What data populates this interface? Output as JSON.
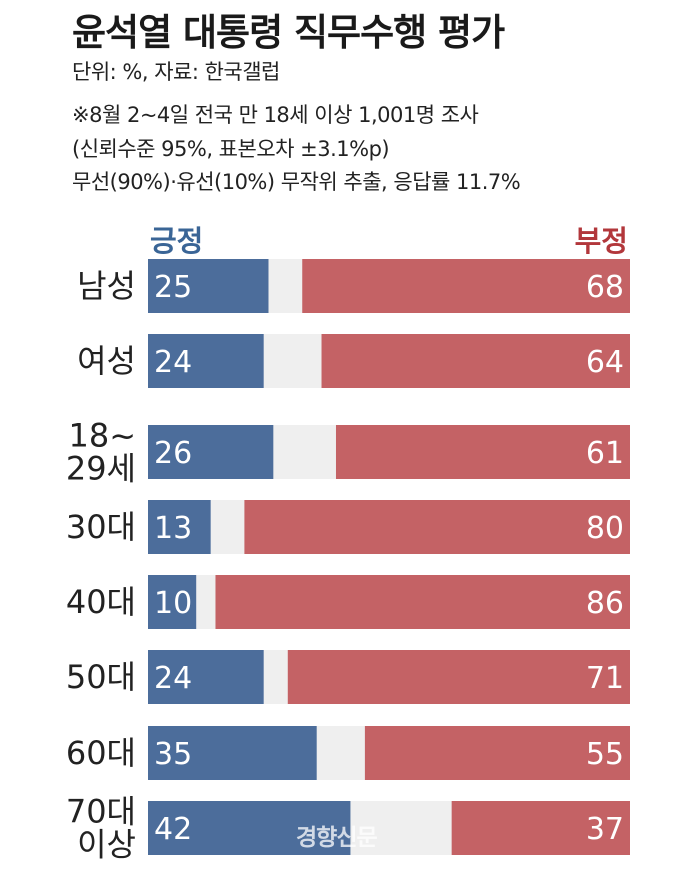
{
  "header": {
    "title": "윤석열 대통령 직무수행 평가",
    "unit_source": "단위: %, 자료: 한국갤럽",
    "note_line1": "※8월 2~4일 전국 만 18세 이상 1,001명 조사",
    "note_line2": "(신뢰수준 95%, 표본오차 ±3.1%p)",
    "note_line3": "무선(90%)·유선(10%) 무작위 추출, 응답률 11.7%"
  },
  "watermark": "경향신문",
  "colors": {
    "positive": "#4c6d9b",
    "negative": "#c46265",
    "neutral": "#efefef",
    "positive_text": "#3a6596",
    "negative_text": "#b2373b"
  },
  "chart_data": {
    "type": "bar",
    "orientation": "horizontal",
    "stacked": true,
    "xlim": [
      0,
      100
    ],
    "categories": [
      [
        "남성"
      ],
      [
        "여성"
      ],
      [
        "18~",
        "29세"
      ],
      [
        "30대"
      ],
      [
        "40대"
      ],
      [
        "50대"
      ],
      [
        "60대"
      ],
      [
        "70대",
        "이상"
      ]
    ],
    "series": [
      {
        "name": "긍정",
        "values": [
          25,
          24,
          26,
          13,
          10,
          24,
          35,
          42
        ]
      },
      {
        "name": "부정",
        "values": [
          68,
          64,
          61,
          80,
          86,
          71,
          55,
          37
        ]
      }
    ]
  }
}
